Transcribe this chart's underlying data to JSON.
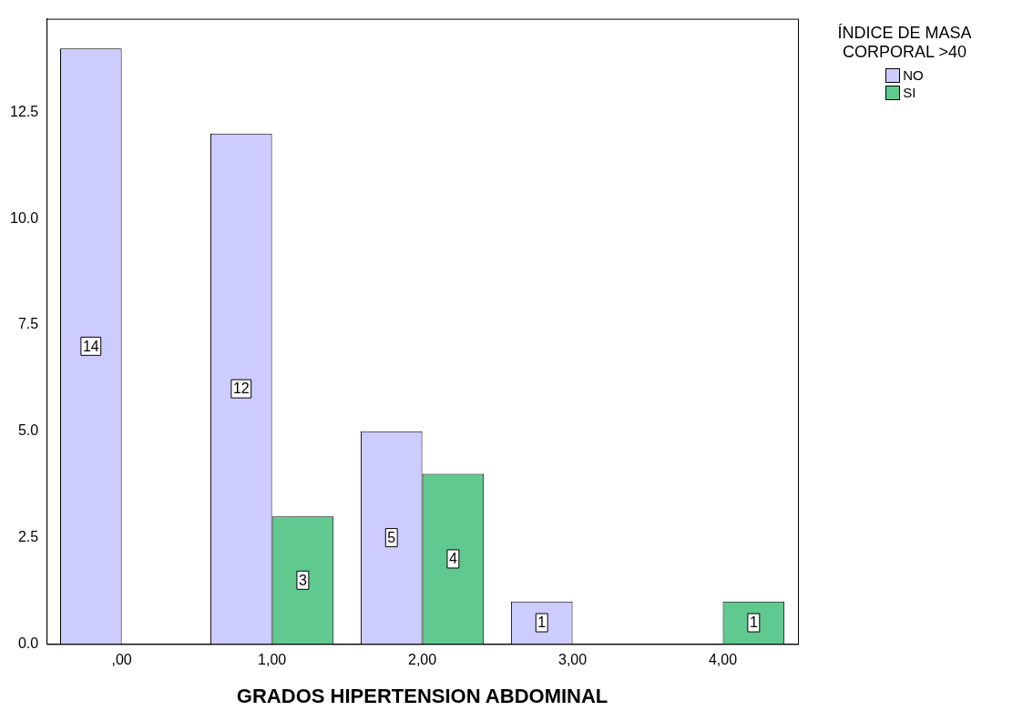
{
  "chart_data": {
    "type": "bar",
    "xlabel": "GRADOS HIPERTENSION ABDOMINAL",
    "legend_title": "ÍNDICE DE MASA CORPORAL >40",
    "categories": [
      ",00",
      "1,00",
      "2,00",
      "3,00",
      "4,00"
    ],
    "series": [
      {
        "name": "NO",
        "color": "#ccccff",
        "values": [
          14,
          12,
          5,
          1,
          null
        ]
      },
      {
        "name": "SI",
        "color": "#5fc98f",
        "values": [
          null,
          3,
          4,
          null,
          1
        ]
      }
    ],
    "ylim": [
      0,
      14.7
    ],
    "yticks": [
      {
        "value": 0,
        "label": "0.0"
      },
      {
        "value": 2.5,
        "label": "2.5"
      },
      {
        "value": 5,
        "label": "5.0"
      },
      {
        "value": 7.5,
        "label": "7.5"
      },
      {
        "value": 10,
        "label": "10.0"
      },
      {
        "value": 12.5,
        "label": "12.5"
      }
    ],
    "grid": false,
    "legend": "top right",
    "data_labels": true
  }
}
